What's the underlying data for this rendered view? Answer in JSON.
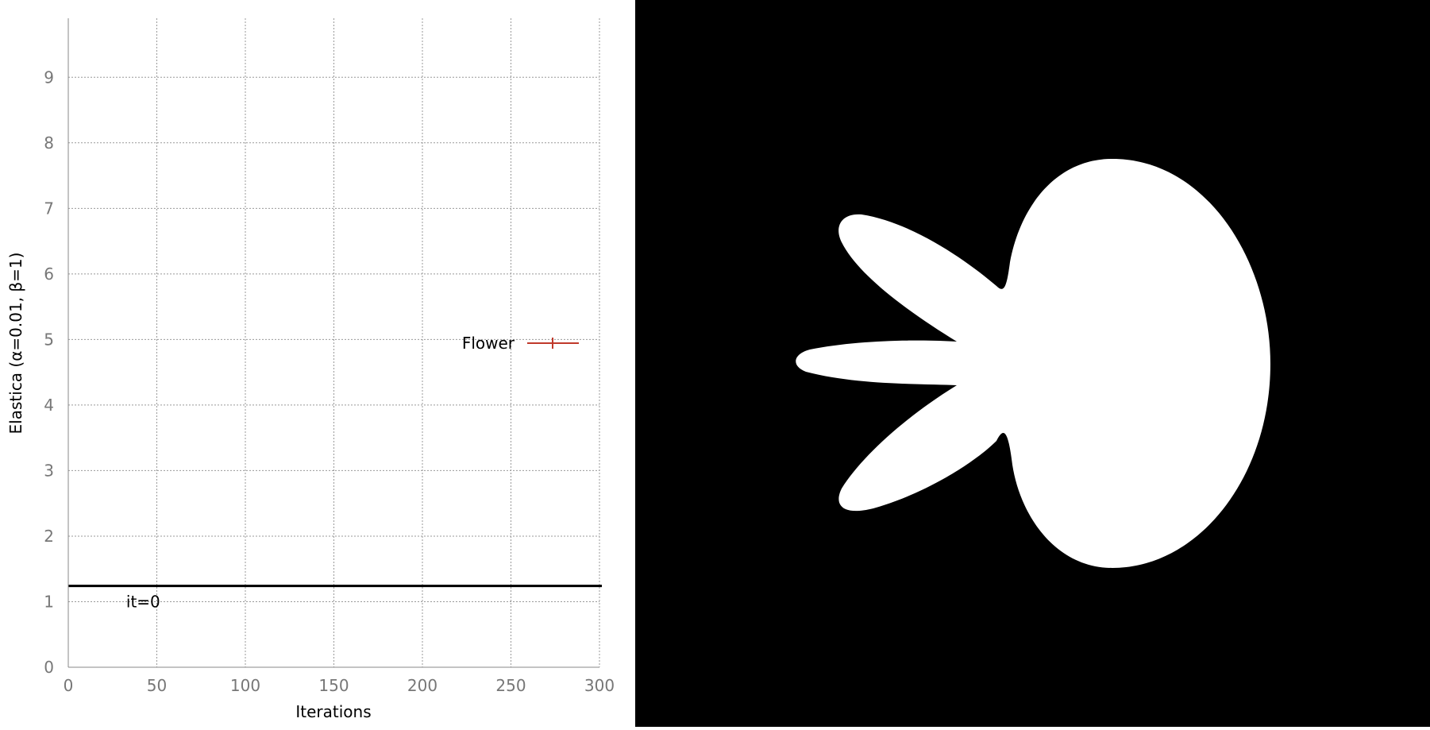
{
  "chart_data": {
    "type": "line",
    "xlabel": "Iterations",
    "ylabel": "Elastica (α=0.01, β=1)",
    "xlim": [
      0,
      300
    ],
    "ylim": [
      0,
      9.9
    ],
    "xticks": [
      0,
      50,
      100,
      150,
      200,
      250,
      300
    ],
    "yticks": [
      0,
      1,
      2,
      3,
      4,
      5,
      6,
      7,
      8,
      9
    ],
    "grid": true,
    "legend": {
      "position": "right-center",
      "entries": [
        "Flower"
      ]
    },
    "series": [
      {
        "name": "Flower",
        "color": "#c0392b",
        "x": [],
        "y": []
      }
    ],
    "reference_line": {
      "y": 1.24,
      "color": "#000000"
    },
    "annotation": {
      "text": "it=0",
      "x": 30,
      "y": 1.0
    }
  },
  "shape_panel": {
    "background": "#000000",
    "shape_color": "#ffffff",
    "shape": "flower"
  }
}
